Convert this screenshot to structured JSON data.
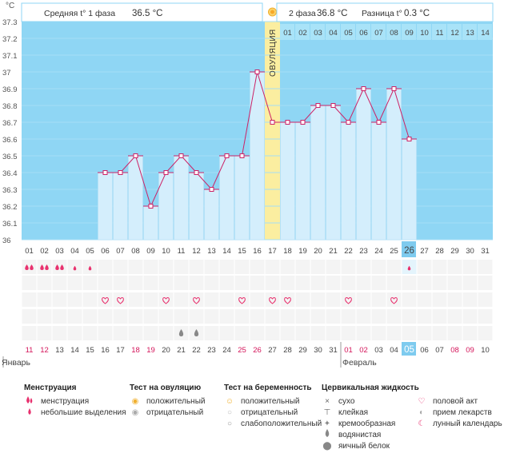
{
  "units": "°C",
  "header": {
    "phase1_label": "Средняя t° 1 фаза",
    "phase1_value": "36.5 °C",
    "phase2_label": "2 фаза",
    "phase2_value": "36.8 °C",
    "diff_label": "Разница t°",
    "diff_value": "0.3 °C"
  },
  "ovulation_label": "ОВУЛЯЦИЯ",
  "post_day_labels": [
    "01",
    "02",
    "03",
    "04",
    "05",
    "06",
    "07",
    "08",
    "09",
    "10",
    "11",
    "12",
    "13",
    "14"
  ],
  "cycle_days": [
    "01",
    "02",
    "03",
    "04",
    "05",
    "06",
    "07",
    "08",
    "09",
    "10",
    "11",
    "12",
    "13",
    "14",
    "15",
    "16",
    "17",
    "18",
    "19",
    "20",
    "21",
    "22",
    "23",
    "24",
    "25",
    "26",
    "27",
    "28",
    "29",
    "30",
    "31"
  ],
  "dates": [
    {
      "t": "11",
      "red": true
    },
    {
      "t": "12",
      "red": true
    },
    {
      "t": "13",
      "red": false
    },
    {
      "t": "14",
      "red": false
    },
    {
      "t": "15",
      "red": false
    },
    {
      "t": "16",
      "red": false
    },
    {
      "t": "17",
      "red": false
    },
    {
      "t": "18",
      "red": true
    },
    {
      "t": "19",
      "red": true
    },
    {
      "t": "20",
      "red": false
    },
    {
      "t": "21",
      "red": false
    },
    {
      "t": "22",
      "red": false
    },
    {
      "t": "23",
      "red": false
    },
    {
      "t": "24",
      "red": false
    },
    {
      "t": "25",
      "red": true
    },
    {
      "t": "26",
      "red": true
    },
    {
      "t": "27",
      "red": false
    },
    {
      "t": "28",
      "red": false
    },
    {
      "t": "29",
      "red": false
    },
    {
      "t": "30",
      "red": false
    },
    {
      "t": "31",
      "red": false
    },
    {
      "t": "01",
      "red": true
    },
    {
      "t": "02",
      "red": true
    },
    {
      "t": "03",
      "red": false
    },
    {
      "t": "04",
      "red": false
    },
    {
      "t": "05",
      "red": false
    },
    {
      "t": "06",
      "red": false
    },
    {
      "t": "07",
      "red": false
    },
    {
      "t": "08",
      "red": true
    },
    {
      "t": "09",
      "red": true
    },
    {
      "t": "10",
      "red": false
    }
  ],
  "months": {
    "first": "Январь",
    "second": "Февраль"
  },
  "marks": {
    "menstruation": [
      1,
      1,
      1,
      2,
      2,
      0,
      0,
      0,
      0,
      0,
      0,
      0,
      0,
      0,
      0,
      0,
      0,
      0,
      0,
      0,
      0,
      0,
      0,
      0,
      0,
      2,
      0,
      0,
      0,
      0,
      0
    ],
    "intercourse_days": [
      6,
      7,
      10,
      12,
      15,
      17,
      18,
      22,
      25
    ],
    "fluid_days": [
      11,
      12
    ]
  },
  "highlight_day": 26,
  "chart_data": {
    "type": "line",
    "title": "",
    "xlabel": "",
    "ylabel": "°C",
    "ylim": [
      36.0,
      37.3
    ],
    "yticks": [
      36,
      36.1,
      36.2,
      36.3,
      36.4,
      36.5,
      36.6,
      36.7,
      36.8,
      36.9,
      37,
      37.1,
      37.2,
      37.3
    ],
    "x": [
      6,
      7,
      8,
      9,
      10,
      11,
      12,
      13,
      14,
      15,
      16,
      17,
      18,
      19,
      20,
      21,
      22,
      23,
      24,
      25,
      26
    ],
    "values": [
      36.4,
      36.4,
      36.5,
      36.2,
      36.4,
      36.5,
      36.4,
      36.3,
      36.5,
      36.5,
      37.0,
      36.7,
      36.7,
      36.7,
      36.8,
      36.8,
      36.7,
      36.9,
      36.7,
      36.9,
      36.6
    ],
    "ovulation_day": 17,
    "line_color": "#cc2266",
    "bar_color": "#d4eefc",
    "background_color": "#8fd6f4",
    "ovulation_color": "#fbeea0"
  },
  "legend": {
    "groups": [
      {
        "title": "Менструация",
        "items": [
          {
            "icon": "drop-large-icon",
            "label": "менструация"
          },
          {
            "icon": "drop-small-icon",
            "label": "небольшие выделения"
          }
        ]
      },
      {
        "title": "Тест на овуляцию",
        "items": [
          {
            "icon": "sun-positive-icon",
            "label": "положительный"
          },
          {
            "icon": "sun-negative-icon",
            "label": "отрицательный"
          }
        ]
      },
      {
        "title": "Тест на беременность",
        "items": [
          {
            "icon": "smiley-positive-icon",
            "label": "положительный"
          },
          {
            "icon": "smiley-negative-icon",
            "label": "отрицательный"
          },
          {
            "icon": "smiley-weak-icon",
            "label": "слабоположительный"
          }
        ]
      },
      {
        "title": "Цервикальная жидкость",
        "items": [
          {
            "icon": "cross-icon",
            "label": "сухо"
          },
          {
            "icon": "sticky-icon",
            "label": "клейкая"
          },
          {
            "icon": "creamy-icon",
            "label": "кремообразная"
          },
          {
            "icon": "watery-drop-icon",
            "label": "водянистая"
          },
          {
            "icon": "eggwhite-icon",
            "label": "яичный белок"
          }
        ]
      },
      {
        "title": "",
        "items": [
          {
            "icon": "heart-icon",
            "label": "половой акт"
          },
          {
            "icon": "pill-icon",
            "label": "прием лекарств"
          },
          {
            "icon": "moon-icon",
            "label": "лунный календарь"
          }
        ]
      }
    ]
  }
}
